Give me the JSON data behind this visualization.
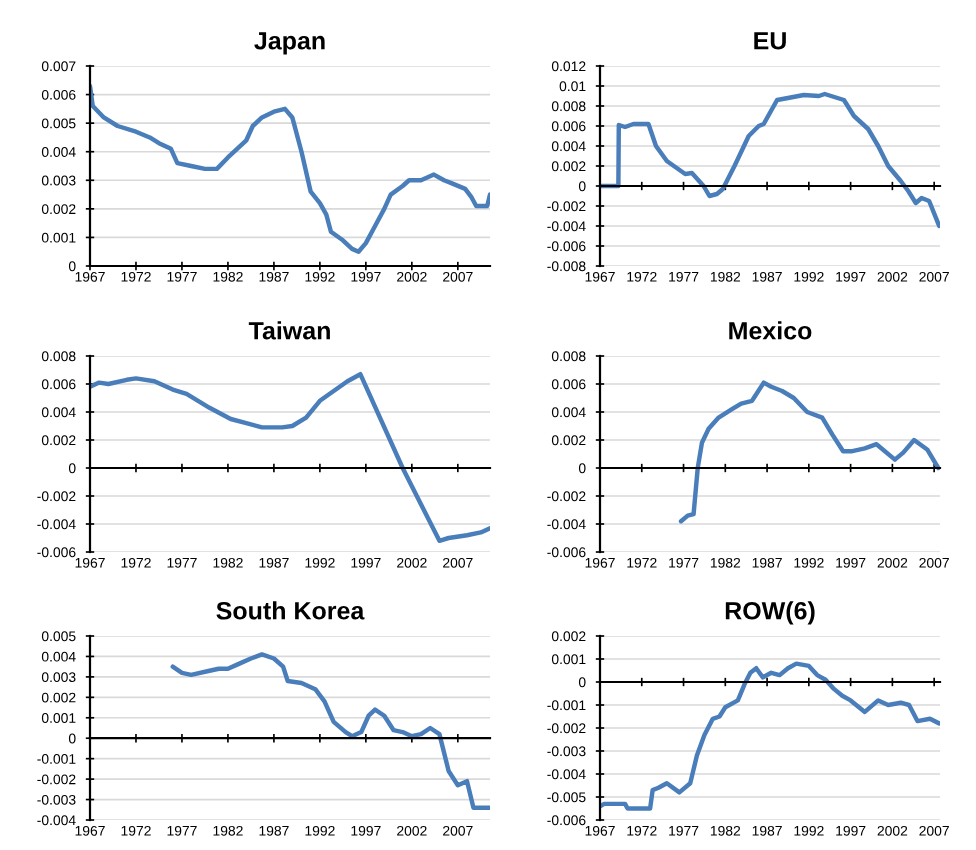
{
  "chart_data": [
    {
      "type": "line",
      "title": "Japan",
      "xlim": [
        1967,
        2010.5
      ],
      "xticks": [
        1967,
        1972,
        1977,
        1982,
        1987,
        1992,
        1997,
        2002,
        2007
      ],
      "ylim": [
        0,
        0.007
      ],
      "yticks": [
        0,
        0.001,
        0.002,
        0.003,
        0.004,
        0.005,
        0.006,
        0.007
      ],
      "grid": "y",
      "series": [
        {
          "color": "#4a7ebb",
          "x": [
            1967,
            1967.3,
            1968.5,
            1970,
            1972,
            1973.5,
            1974.5,
            1975.8,
            1976.5,
            1978,
            1979.5,
            1980.8,
            1982,
            1983,
            1984,
            1984.7,
            1985.7,
            1987,
            1988.2,
            1989,
            1990,
            1991,
            1992,
            1992.7,
            1993.2,
            1994.5,
            1995.5,
            1996.2,
            1997,
            1998,
            1999,
            1999.7,
            2001,
            2001.7,
            2003,
            2004.4,
            2005.5,
            2006.3,
            2007.8,
            2008.5,
            2009,
            2010.2,
            2010.5
          ],
          "values": [
            0.0063,
            0.0056,
            0.0052,
            0.0049,
            0.0047,
            0.0045,
            0.0043,
            0.0041,
            0.0036,
            0.0035,
            0.0034,
            0.0034,
            0.0038,
            0.0041,
            0.0044,
            0.0049,
            0.0052,
            0.0054,
            0.0055,
            0.0052,
            0.004,
            0.0026,
            0.0022,
            0.0018,
            0.0012,
            0.0009,
            0.0006,
            0.0005,
            0.0008,
            0.0014,
            0.002,
            0.0025,
            0.0028,
            0.003,
            0.003,
            0.0032,
            0.003,
            0.0029,
            0.0027,
            0.0024,
            0.0021,
            0.0021,
            0.0025
          ]
        }
      ]
    },
    {
      "type": "line",
      "title": "EU",
      "xlim": [
        1967,
        2007.7
      ],
      "xticks": [
        1967,
        1972,
        1977,
        1982,
        1987,
        1992,
        1997,
        2002,
        2007
      ],
      "ylim": [
        -0.008,
        0.012
      ],
      "yticks": [
        -0.008,
        -0.006,
        -0.004,
        -0.002,
        0,
        0.002,
        0.004,
        0.006,
        0.008,
        0.01,
        0.012
      ],
      "grid": "y",
      "series": [
        {
          "color": "#4a7ebb",
          "x": [
            1967,
            1969.2,
            1969.25,
            1970,
            1971,
            1972.8,
            1973.7,
            1975,
            1977.2,
            1978,
            1979.4,
            1980.1,
            1981,
            1981.7,
            1983.1,
            1984.8,
            1986,
            1986.6,
            1988.2,
            1989.5,
            1991.4,
            1993.2,
            1993.9,
            1996.2,
            1997.4,
            1999.1,
            2000.3,
            2001.5,
            2003,
            2003.9,
            2004.8,
            2005.5,
            2006.4,
            2007.6
          ],
          "values": [
            0,
            0,
            0.0061,
            0.0059,
            0.0062,
            0.0062,
            0.004,
            0.0025,
            0.0012,
            0.0013,
            0,
            -0.001,
            -0.0008,
            -0.0003,
            0.002,
            0.005,
            0.006,
            0.0062,
            0.0086,
            0.0088,
            0.0091,
            0.009,
            0.0092,
            0.0086,
            0.007,
            0.0057,
            0.004,
            0.002,
            0.0005,
            -0.0005,
            -0.0017,
            -0.0012,
            -0.0015,
            -0.004
          ]
        }
      ]
    },
    {
      "type": "line",
      "title": "Taiwan",
      "xlim": [
        1967,
        2010.5
      ],
      "xticks": [
        1967,
        1972,
        1977,
        1982,
        1987,
        1992,
        1997,
        2002,
        2007
      ],
      "ylim": [
        -0.006,
        0.008
      ],
      "yticks": [
        -0.006,
        -0.004,
        -0.002,
        0,
        0.002,
        0.004,
        0.006,
        0.008
      ],
      "grid": "y",
      "series": [
        {
          "color": "#4a7ebb",
          "x": [
            1967,
            1968,
            1969,
            1971,
            1972,
            1974,
            1976,
            1977.5,
            1980,
            1982.3,
            1984,
            1985.7,
            1987.9,
            1989,
            1990.5,
            1992,
            1993.5,
            1995,
            1996.4,
            2001,
            2005,
            2006,
            2008,
            2009.5,
            2010.5
          ],
          "values": [
            0.0058,
            0.0061,
            0.006,
            0.0063,
            0.0064,
            0.0062,
            0.0056,
            0.0053,
            0.0043,
            0.0035,
            0.0032,
            0.0029,
            0.0029,
            0.003,
            0.0036,
            0.0048,
            0.0055,
            0.0062,
            0.0067,
            0,
            -0.0052,
            -0.005,
            -0.0048,
            -0.0046,
            -0.0043
          ]
        }
      ]
    },
    {
      "type": "line",
      "title": "Mexico",
      "xlim": [
        1967,
        2007.7
      ],
      "xticks": [
        1967,
        1972,
        1977,
        1982,
        1987,
        1992,
        1997,
        2002,
        2007
      ],
      "ylim": [
        -0.006,
        0.008
      ],
      "yticks": [
        -0.006,
        -0.004,
        -0.002,
        0,
        0.002,
        0.004,
        0.006,
        0.008
      ],
      "grid": "y",
      "series": [
        {
          "color": "#4a7ebb",
          "x": [
            1976.7,
            1977.5,
            1978.2,
            1978.7,
            1979.2,
            1980,
            1981.2,
            1982.8,
            1983.9,
            1985.2,
            1986.6,
            1987.5,
            1988.8,
            1990.2,
            1991.8,
            1993.6,
            1994.8,
            1996.1,
            1997.2,
            1998.7,
            2000.1,
            2002.3,
            2003.3,
            2004.6,
            2006.2,
            2007.5
          ],
          "values": [
            -0.0038,
            -0.0034,
            -0.0033,
            0,
            0.0018,
            0.0028,
            0.0036,
            0.0042,
            0.0046,
            0.0048,
            0.0061,
            0.0058,
            0.0055,
            0.005,
            0.004,
            0.0036,
            0.0024,
            0.0012,
            0.0012,
            0.0014,
            0.0017,
            0.0006,
            0.0011,
            0.002,
            0.0013,
            0
          ]
        }
      ]
    },
    {
      "type": "line",
      "title": "South Korea",
      "xlim": [
        1967,
        2010.5
      ],
      "xticks": [
        1967,
        1972,
        1977,
        1982,
        1987,
        1992,
        1997,
        2002,
        2007
      ],
      "ylim": [
        -0.004,
        0.005
      ],
      "yticks": [
        -0.004,
        -0.003,
        -0.002,
        -0.001,
        0,
        0.001,
        0.002,
        0.003,
        0.004,
        0.005
      ],
      "grid": "y",
      "series": [
        {
          "color": "#4a7ebb",
          "x": [
            1976,
            1977,
            1978,
            1980,
            1981,
            1982,
            1983,
            1984.5,
            1985.7,
            1987,
            1988,
            1988.5,
            1990,
            1991.5,
            1992.5,
            1993.5,
            1994.8,
            1995.5,
            1996.5,
            1997.3,
            1998,
            1999,
            2000,
            2001,
            2002,
            2003,
            2004,
            2005,
            2006,
            2007,
            2008,
            2008.7,
            2010.5
          ],
          "values": [
            0.0035,
            0.0032,
            0.0031,
            0.0033,
            0.0034,
            0.0034,
            0.0036,
            0.0039,
            0.0041,
            0.0039,
            0.0035,
            0.0028,
            0.0027,
            0.0024,
            0.0018,
            0.0008,
            0.0003,
            0.0001,
            0.0003,
            0.0011,
            0.0014,
            0.0011,
            0.0004,
            0.0003,
            0.0001,
            0.0002,
            0.0005,
            0.0002,
            -0.0016,
            -0.0023,
            -0.0021,
            -0.0034,
            -0.0034
          ]
        }
      ]
    },
    {
      "type": "line",
      "title": "ROW(6)",
      "xlim": [
        1967,
        2007.7
      ],
      "xticks": [
        1967,
        1972,
        1977,
        1982,
        1987,
        1992,
        1997,
        2002,
        2007
      ],
      "ylim": [
        -0.006,
        0.002
      ],
      "yticks": [
        -0.006,
        -0.005,
        -0.004,
        -0.003,
        -0.002,
        -0.001,
        0,
        0.001,
        0.002
      ],
      "grid": "y",
      "series": [
        {
          "color": "#4a7ebb",
          "x": [
            1967,
            1967.5,
            1970,
            1970.3,
            1973,
            1973.3,
            1974,
            1975,
            1976.5,
            1977.8,
            1978.6,
            1979.5,
            1980.5,
            1981.3,
            1982,
            1983.5,
            1984.3,
            1985,
            1985.7,
            1986.5,
            1987.5,
            1988.5,
            1989.5,
            1990.5,
            1992,
            1993,
            1994,
            1995,
            1996,
            1997,
            1998.7,
            2000.3,
            2001.5,
            2003,
            2004,
            2005,
            2006.5,
            2007.6
          ],
          "values": [
            -0.0054,
            -0.0053,
            -0.0053,
            -0.0055,
            -0.0055,
            -0.0047,
            -0.0046,
            -0.0044,
            -0.0048,
            -0.0044,
            -0.0032,
            -0.0023,
            -0.0016,
            -0.0015,
            -0.0011,
            -0.0008,
            -0.0001,
            0.0004,
            0.0006,
            0.0002,
            0.0004,
            0.0003,
            0.0006,
            0.0008,
            0.0007,
            0.0003,
            0.0001,
            -0.0003,
            -0.0006,
            -0.0008,
            -0.0013,
            -0.0008,
            -0.001,
            -0.0009,
            -0.001,
            -0.0017,
            -0.0016,
            -0.0018
          ]
        }
      ]
    }
  ]
}
